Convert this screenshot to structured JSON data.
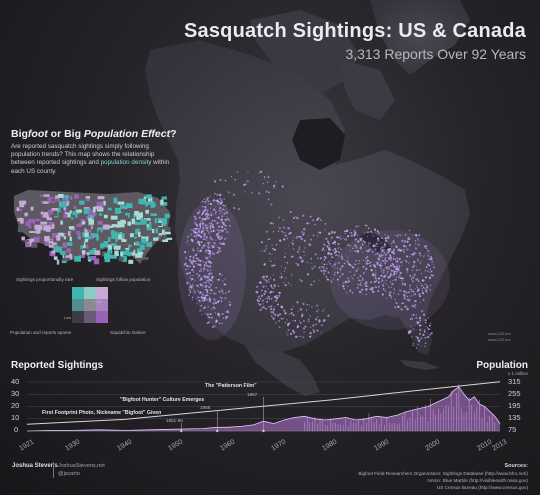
{
  "header": {
    "title": "Sasquatch Sightings: US & Canada",
    "subtitle": "3,313 Reports Over 92 Years"
  },
  "inset_panel": {
    "heading_pre": "Big",
    "heading_foot": "foot",
    "heading_mid": " or Big ",
    "heading_pop": "Population Effect",
    "heading_q": "?",
    "body_part1": "Are reported sasquatch sightings simply following population trends? This map shows the relationship between reported sightings and ",
    "body_highlight": "population density",
    "body_part2": " within each US county.",
    "legend": {
      "top_left": "Sightings proportionally rare",
      "top_right": "Sightings follow population",
      "bottom_left": "Population and reports sparse",
      "bottom_right": "Squatchin Galore",
      "axis_high": "High",
      "axis_low": "Low"
    },
    "colors": {
      "teal": "#3fb7b0",
      "purple": "#9a63b8",
      "lavender": "#c7a9d6",
      "light_teal": "#a9dbd6",
      "grey": "#5c5a60"
    }
  },
  "map": {
    "credit_line1": "www.232.km",
    "credit_line2": "www.232.km",
    "sighting_color": "#c9a6ff"
  },
  "timeline": {
    "left_title": "Reported Sightings",
    "right_title": "Population",
    "right_unit": "x 1 million",
    "left_ticks": [
      "40",
      "30",
      "20",
      "10",
      "0"
    ],
    "right_ticks": [
      "315",
      "255",
      "195",
      "135",
      "75"
    ],
    "annotations": [
      {
        "label": "The \"Patterson Film\"",
        "year": "1967"
      },
      {
        "label": "\"Bigfoot Hunter\" Culture Emerges",
        "year": "1958"
      },
      {
        "label": "First Footprint Photo, Nickname \"Bigfoot\" Given",
        "year": "1951-58"
      }
    ],
    "chart_data": {
      "type": "area",
      "x_range": [
        1921,
        2013
      ],
      "x_ticks": [
        "1921",
        "1930",
        "1940",
        "1950",
        "1960",
        "1970",
        "1980",
        "1990",
        "2000",
        "2010",
        "2013"
      ],
      "y_left_range": [
        0,
        40
      ],
      "y_right_range": [
        75,
        315
      ],
      "series": [
        {
          "name": "Reported Sightings",
          "color": "#b878d8",
          "x": [
            1921,
            1925,
            1930,
            1935,
            1940,
            1945,
            1950,
            1955,
            1958,
            1960,
            1963,
            1965,
            1967,
            1969,
            1971,
            1973,
            1975,
            1977,
            1979,
            1981,
            1983,
            1985,
            1987,
            1989,
            1991,
            1993,
            1995,
            1997,
            1999,
            2001,
            2003,
            2004,
            2005,
            2006,
            2007,
            2008,
            2009,
            2010,
            2011,
            2012,
            2013
          ],
          "values": [
            0,
            0.5,
            0.5,
            1,
            0.5,
            1,
            1.5,
            2,
            3,
            3,
            4,
            5,
            8,
            6,
            9,
            11,
            12,
            10,
            9,
            10,
            11,
            9,
            10,
            12,
            11,
            13,
            16,
            18,
            20,
            24,
            28,
            33,
            36,
            30,
            25,
            28,
            22,
            20,
            16,
            12,
            6
          ]
        },
        {
          "name": "Population",
          "color": "#d8d6dc",
          "x": [
            1921,
            1940,
            1960,
            1980,
            2000,
            2013
          ],
          "values": [
            108,
            132,
            180,
            227,
            282,
            316
          ]
        }
      ]
    }
  },
  "footer": {
    "author": "Joshua Stevens",
    "site": "JoshuaStevens.net",
    "handle": "@jscarto",
    "sources_title": "Sources:",
    "sources": [
      "Bigfoot Field Researchers Organization: Sightings Database (http://www.bfro.net/)",
      "NASA: Blue Marble (http://visibleearth.nasa.gov)",
      "US Census Bureau (http://www.census.gov)"
    ]
  }
}
